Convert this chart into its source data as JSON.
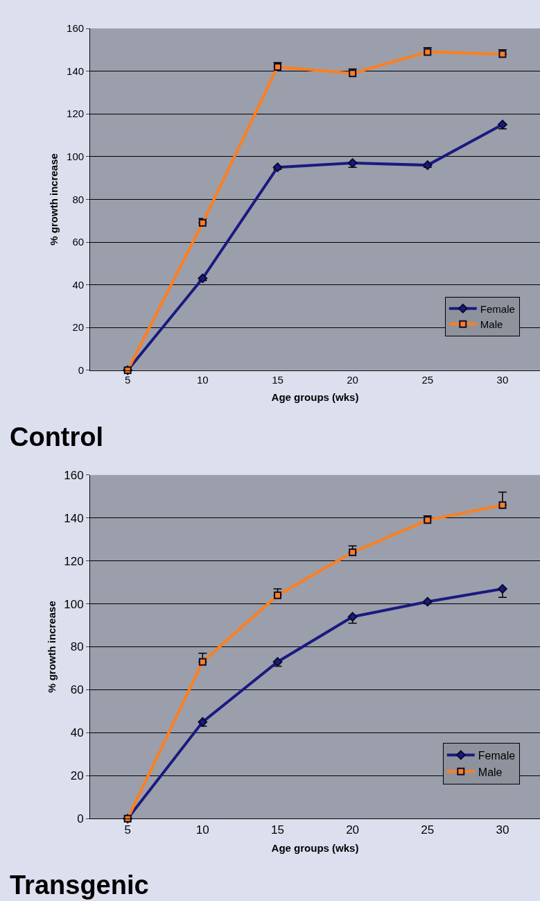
{
  "chart_data": [
    {
      "type": "line",
      "title": "Control",
      "xlabel": "Age groups (wks)",
      "ylabel": "% growth increase",
      "categories": [
        "5",
        "10",
        "15",
        "20",
        "25",
        "30"
      ],
      "series": [
        {
          "name": "Female",
          "color": "#1a1a80",
          "marker": "diamond",
          "values": [
            0,
            43,
            95,
            97,
            96,
            115
          ],
          "errors": [
            null,
            [
              42,
              43
            ],
            [
              94,
              95
            ],
            [
              95,
              97
            ],
            [
              95,
              96
            ],
            [
              113,
              115
            ]
          ]
        },
        {
          "name": "Male",
          "color": "#ff7f1e",
          "marker": "square",
          "values": [
            0,
            69,
            142,
            139,
            149,
            148
          ],
          "errors": [
            null,
            [
              69,
              71
            ],
            [
              142,
              144
            ],
            [
              139,
              141
            ],
            [
              149,
              151
            ],
            [
              148,
              150
            ]
          ]
        }
      ],
      "ylim": [
        0,
        160
      ],
      "yticks": [
        0,
        20,
        40,
        60,
        80,
        100,
        120,
        140,
        160
      ],
      "grid": "y",
      "legend": "bottom right"
    },
    {
      "type": "line",
      "title": "Transgenic",
      "xlabel": "Age groups (wks)",
      "ylabel": "% growth increase",
      "categories": [
        "5",
        "10",
        "15",
        "20",
        "25",
        "30"
      ],
      "series": [
        {
          "name": "Female",
          "color": "#1a1a80",
          "marker": "diamond",
          "values": [
            0,
            45,
            73,
            94,
            101,
            107
          ],
          "errors": [
            null,
            [
              43,
              45
            ],
            [
              71,
              73
            ],
            [
              91,
              94
            ],
            [
              100,
              101
            ],
            [
              103,
              107
            ]
          ]
        },
        {
          "name": "Male",
          "color": "#ff7f1e",
          "marker": "square",
          "values": [
            0,
            73,
            104,
            124,
            139,
            146
          ],
          "errors": [
            null,
            [
              73,
              77
            ],
            [
              104,
              107
            ],
            [
              124,
              127
            ],
            [
              139,
              141
            ],
            [
              146,
              152
            ]
          ]
        }
      ],
      "ylim": [
        0,
        160
      ],
      "yticks": [
        0,
        20,
        40,
        60,
        80,
        100,
        120,
        140,
        160
      ],
      "grid": "y",
      "legend": "bottom right"
    }
  ]
}
